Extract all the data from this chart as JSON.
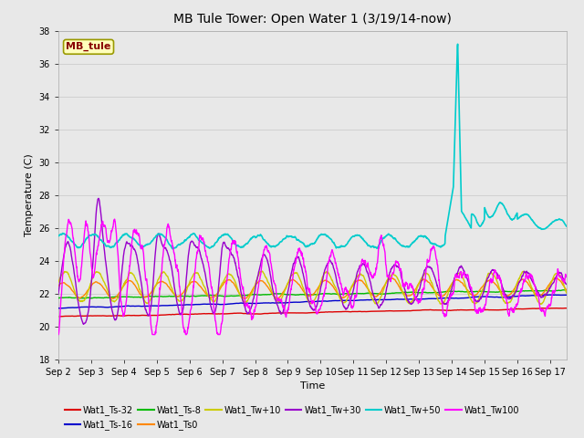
{
  "title": "MB Tule Tower: Open Water 1 (3/19/14-now)",
  "xlabel": "Time",
  "ylabel": "Temperature (C)",
  "ylim": [
    18,
    38
  ],
  "yticks": [
    18,
    20,
    22,
    24,
    26,
    28,
    30,
    32,
    34,
    36,
    38
  ],
  "xlim_days": [
    0,
    15.5
  ],
  "x_tick_labels": [
    "Sep 2",
    "Sep 3",
    "Sep 4",
    "Sep 5",
    "Sep 6",
    "Sep 7",
    "Sep 8",
    "Sep 9",
    "Sep 10",
    "Sep 11",
    "Sep 12",
    "Sep 13",
    "Sep 14",
    "Sep 15",
    "Sep 16",
    "Sep 17"
  ],
  "x_tick_positions": [
    0,
    1,
    2,
    3,
    4,
    5,
    6,
    7,
    8,
    9,
    10,
    11,
    12,
    13,
    14,
    15
  ],
  "series": {
    "Wat1_Ts-32": {
      "color": "#dd0000",
      "lw": 1.0
    },
    "Wat1_Ts-16": {
      "color": "#0000cc",
      "lw": 1.0
    },
    "Wat1_Ts-8": {
      "color": "#00bb00",
      "lw": 1.0
    },
    "Wat1_Ts0": {
      "color": "#ff8800",
      "lw": 1.0
    },
    "Wat1_Tw+10": {
      "color": "#cccc00",
      "lw": 1.0
    },
    "Wat1_Tw+30": {
      "color": "#9900cc",
      "lw": 1.0
    },
    "Wat1_Tw+50": {
      "color": "#00cccc",
      "lw": 1.2
    },
    "Wat1_Tw100": {
      "color": "#ff00ff",
      "lw": 1.0
    }
  },
  "annotation_box": {
    "text": "MB_tule",
    "fgcolor": "#880000",
    "bgcolor": "#ffffbb",
    "edgecolor": "#999900",
    "fontsize": 8
  },
  "bg_color": "#e8e8e8",
  "grid_color": "#d4d4d4",
  "title_fontsize": 10,
  "tick_fontsize": 7,
  "label_fontsize": 8
}
